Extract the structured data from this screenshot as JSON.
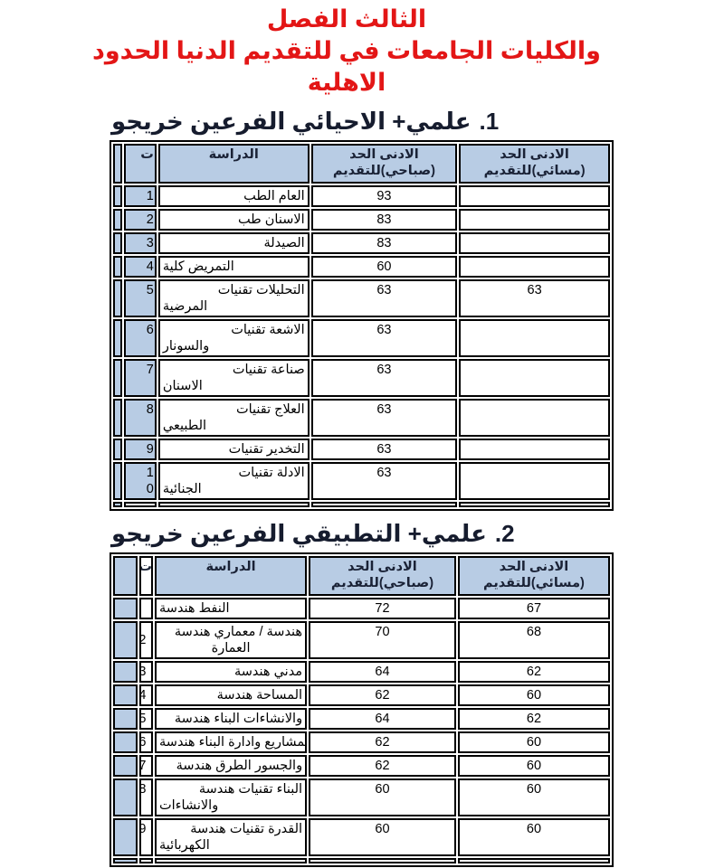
{
  "title": {
    "color": "#e31616",
    "lines": [
      "الفصل الثالث",
      "الحدود الدنيا للتقديم في الجامعات والكليات",
      "الاهلية"
    ]
  },
  "colors": {
    "header_fill": "#b8cce4",
    "border": "#000000",
    "heading_text": "#161c2e",
    "title_red": "#e31616"
  },
  "sections": [
    {
      "number": "1.",
      "heading": "خريجو الفرعين الاحيائي +علمي",
      "table": {
        "headers": {
          "index": "ت",
          "study": "الدراسة",
          "morning": [
            "الحد الادنى",
            "للتقديم(صباحي)"
          ],
          "evening": [
            "الحد الادنى",
            "للتقديم(مسائي)"
          ]
        },
        "rows": [
          {
            "n": "1",
            "study": "الطب العام",
            "morning": "93",
            "evening": ""
          },
          {
            "n": "2",
            "study": "طب الاسنان",
            "morning": "83",
            "evening": ""
          },
          {
            "n": "3",
            "study": "الصيدلة",
            "morning": "83",
            "evening": ""
          },
          {
            "n": "4",
            "study": "كلية التمريض",
            "morning": "60",
            "evening": ""
          },
          {
            "n": "5",
            "study": "تقنيات التحليلات",
            "study2": "المرضية",
            "morning": "63",
            "evening": "63"
          },
          {
            "n": "6",
            "study": "تقنيات الاشعة",
            "study2": "والسونار",
            "morning": "63",
            "evening": ""
          },
          {
            "n": "7",
            "study": "تقنيات صناعة",
            "study2": "الاسنان",
            "morning": "63",
            "evening": ""
          },
          {
            "n": "8",
            "study": "تقنيات العلاج",
            "study2": "الطبيعي",
            "morning": "63",
            "evening": ""
          },
          {
            "n": "9",
            "study": "تقنيات التخدير",
            "morning": "63",
            "evening": ""
          },
          {
            "n": "1",
            "n2": "0",
            "study": "تقنيات الادلة",
            "study2": "الجنائية",
            "morning": "63",
            "evening": ""
          }
        ]
      }
    },
    {
      "number": "2.",
      "heading": "خريجو الفرعين التطبيقي +علمي",
      "table": {
        "headers": {
          "index": "ت",
          "study": "الدراسة",
          "morning": [
            "الحد الادنى",
            "للتقديم(صباحي)"
          ],
          "evening": [
            "الحد الادنى",
            "للتقديم(مسائي)"
          ]
        },
        "rows": [
          {
            "n": "",
            "study": "هندسة النفط",
            "morning": "72",
            "evening": "67"
          },
          {
            "n": "2",
            "study": "هندسة معماري / هندسة",
            "study2": "العمارة",
            "morning": "70",
            "evening": "68"
          },
          {
            "n": "3",
            "study": "هندسة مدني",
            "morning": "64",
            "evening": "62"
          },
          {
            "n": "4",
            "study": "هندسة المساحة",
            "morning": "62",
            "evening": "60"
          },
          {
            "n": "5",
            "study": "هندسة البناء والانشاءات",
            "morning": "64",
            "evening": "62"
          },
          {
            "n": "6",
            "study": "هندسة البناء وادارة المشاريع",
            "morning": "62",
            "evening": "60"
          },
          {
            "n": "7",
            "study": "هندسة الطرق والجسور",
            "morning": "62",
            "evening": "60"
          },
          {
            "n": "8",
            "study": "هندسة تقنيات البناء",
            "study2": "والانشاءات",
            "morning": "60",
            "evening": "60"
          },
          {
            "n": "9",
            "study": "هندسة تقنيات القدرة",
            "study2": "الكهربائية",
            "morning": "60",
            "evening": "60"
          }
        ]
      }
    }
  ]
}
